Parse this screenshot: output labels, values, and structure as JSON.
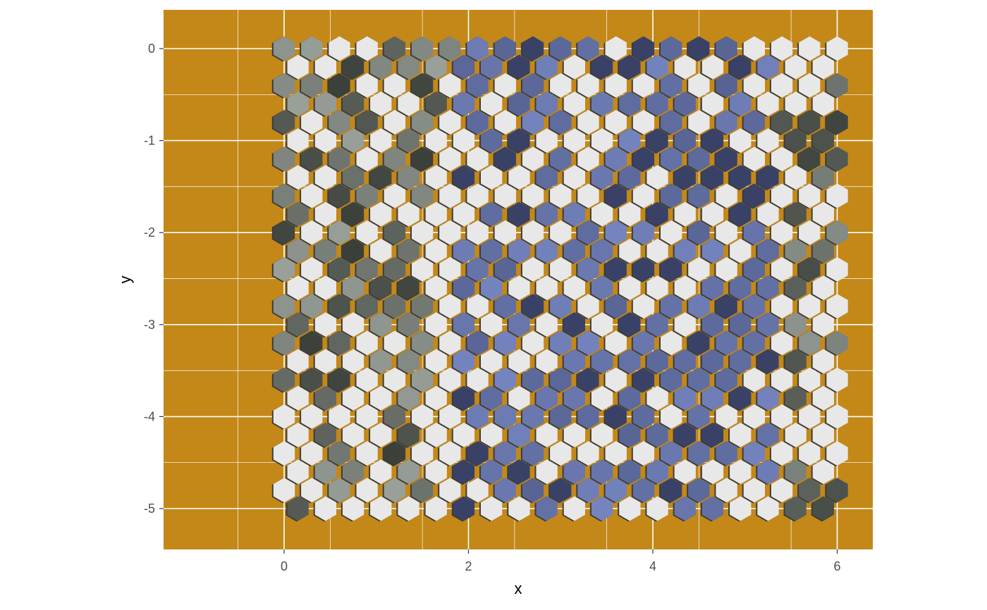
{
  "chart_data": {
    "type": "heatmap",
    "title": "",
    "xlabel": "x",
    "ylabel": "y",
    "xlim": [
      -1.3,
      6.4
    ],
    "ylim": [
      -5.45,
      0.4
    ],
    "x_ticks": [
      0,
      2,
      4,
      6
    ],
    "y_ticks": [
      0,
      -1,
      -2,
      -3,
      -4,
      -5
    ],
    "x_tick_labels": [
      "0",
      "2",
      "4",
      "6"
    ],
    "y_tick_labels": [
      "0",
      "-1",
      "-2",
      "-3",
      "-4",
      "-5"
    ],
    "grid": true,
    "legend": "none",
    "hex_grid": {
      "x_start": 0,
      "x_step": 0.3,
      "columns": 27,
      "row_offset_x": 0.15,
      "y_start": 0,
      "y_step": -0.2,
      "rows": 26,
      "shape": "pointy-top hexagon"
    },
    "image_region": {
      "x_from": 1.85,
      "x_to": 5.3,
      "y_from": -5.2,
      "y_to": -1.2,
      "tint": "blue"
    },
    "colors": {
      "panel_background": "#C38818",
      "hex_empty": "#E8E8E8",
      "hex_shadow": "#3C3C3C",
      "grid_line": "#FFFFFF",
      "photo_gray_dark": "#3A3F3A",
      "photo_gray_light": "#9AA09A",
      "photo_blue": "#7585C0",
      "photo_blue_dark": "#1F2540"
    }
  }
}
